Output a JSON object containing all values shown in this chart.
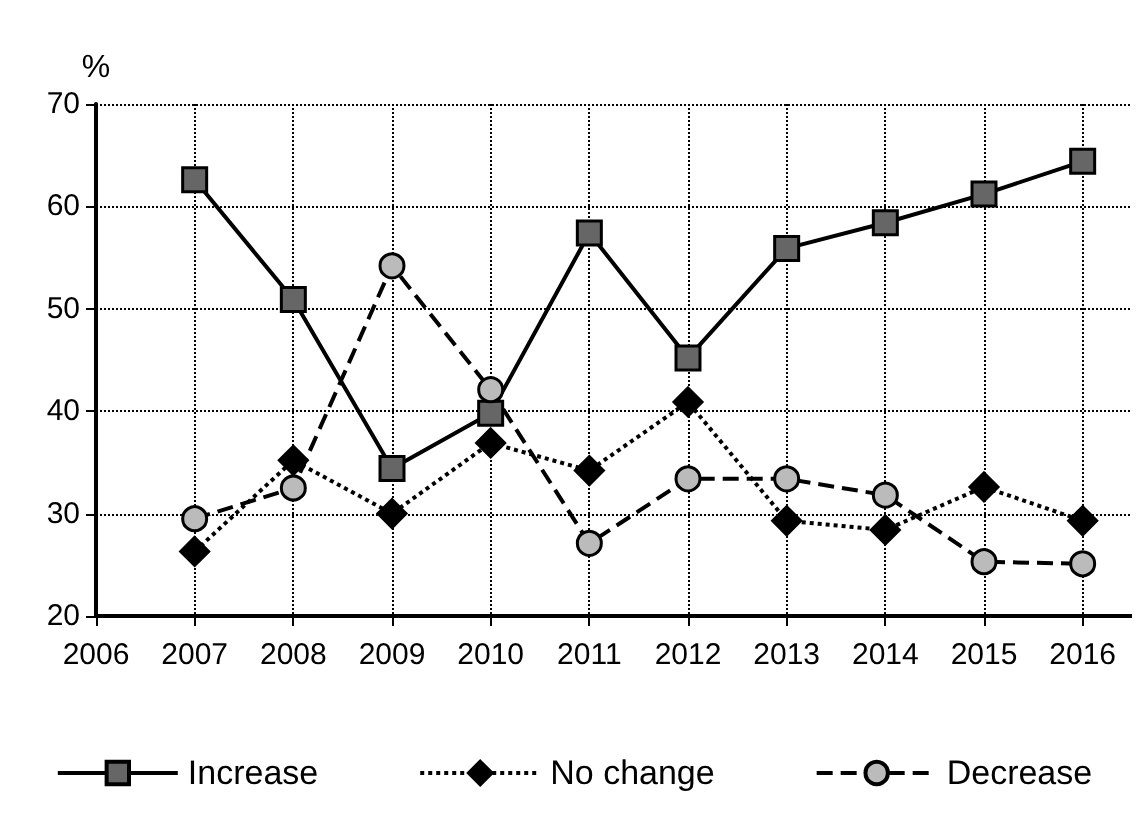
{
  "chart_data": {
    "type": "line",
    "ylabel": "%",
    "x": [
      2007,
      2008,
      2009,
      2010,
      2011,
      2012,
      2013,
      2014,
      2015,
      2016
    ],
    "xlim": [
      2006,
      2016.5
    ],
    "xticks": [
      2006,
      2007,
      2008,
      2009,
      2010,
      2011,
      2012,
      2013,
      2014,
      2015,
      2016
    ],
    "ylim": [
      20,
      70
    ],
    "yticks": [
      20,
      30,
      40,
      50,
      60,
      70
    ],
    "grid": true,
    "legend": "bottom",
    "series": [
      {
        "name": "Increase",
        "color": "#666666",
        "marker": "square",
        "line_style": "solid",
        "values": [
          62.6,
          50.9,
          34.4,
          39.8,
          57.4,
          45.2,
          55.9,
          58.4,
          61.2,
          64.4
        ]
      },
      {
        "name": "No change",
        "color": "#000000",
        "marker": "diamond",
        "line_style": "dotted",
        "values": [
          26.3,
          35.2,
          30.0,
          36.9,
          34.2,
          40.9,
          29.3,
          28.4,
          32.6,
          29.3
        ]
      },
      {
        "name": "Decrease",
        "color": "#bbbbbb",
        "marker": "circle",
        "line_style": "dashed",
        "values": [
          29.5,
          32.5,
          54.2,
          42.1,
          27.1,
          33.4,
          33.4,
          31.8,
          25.3,
          25.1
        ]
      }
    ]
  }
}
